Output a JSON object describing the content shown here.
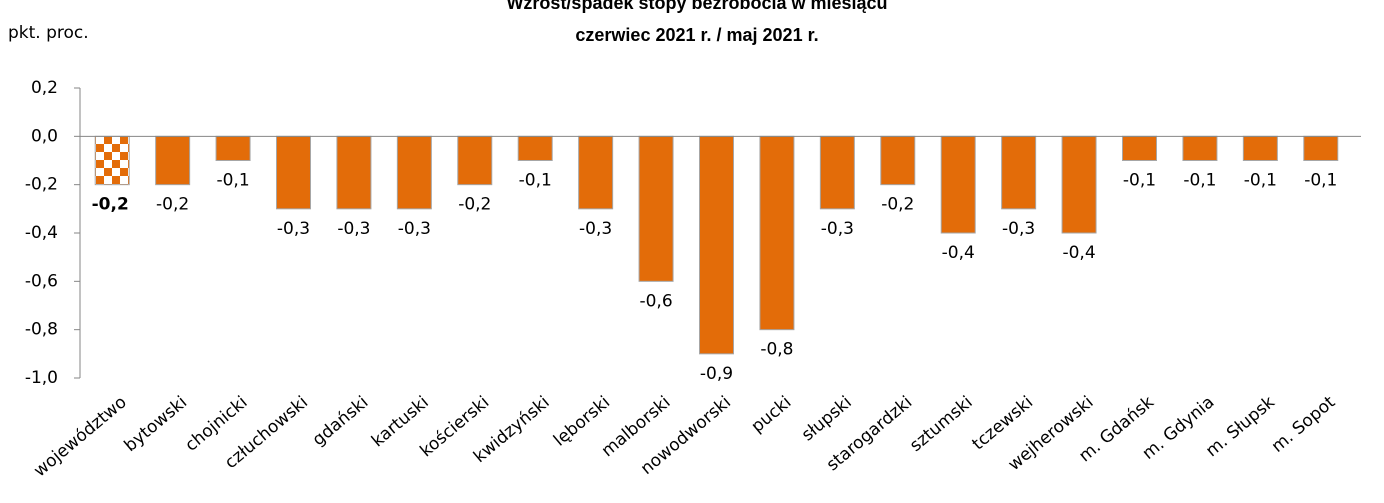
{
  "chart_data": {
    "type": "bar",
    "title": "Wzrost/spadek stopy bezrobocia w miesiącu",
    "subtitle": "czerwiec 2021 r. / maj 2021 r.",
    "y_label": "pkt. proc.",
    "categories": [
      "województwo",
      "bytowski",
      "chojnicki",
      "człuchowski",
      "gdański",
      "kartuski",
      "kościerski",
      "kwidzyński",
      "lęborski",
      "malborski",
      "nowodworski",
      "pucki",
      "słupski",
      "starogardzki",
      "sztumski",
      "tczewski",
      "wejherowski",
      "m. Gdańsk",
      "m. Gdynia",
      "m. Słupsk",
      "m. Sopot"
    ],
    "values": [
      -0.2,
      -0.2,
      -0.1,
      -0.3,
      -0.3,
      -0.3,
      -0.2,
      -0.1,
      -0.3,
      -0.6,
      -0.9,
      -0.8,
      -0.3,
      -0.2,
      -0.4,
      -0.3,
      -0.4,
      -0.1,
      -0.1,
      -0.1,
      -0.1
    ],
    "value_labels": [
      "-0,2",
      "-0,2",
      "-0,1",
      "-0,3",
      "-0,3",
      "-0,3",
      "-0,2",
      "-0,1",
      "-0,3",
      "-0,6",
      "-0,9",
      "-0,8",
      "-0,3",
      "-0,2",
      "-0,4",
      "-0,3",
      "-0,4",
      "-0,1",
      "-0,1",
      "-0,1",
      "-0,1"
    ],
    "color": "#e36c09",
    "highlight": 0,
    "ylim": [
      -1.0,
      0.2
    ],
    "yticks": [
      {
        "value": -1.0,
        "label": "-1,0"
      },
      {
        "value": -0.8,
        "label": "-0,8"
      },
      {
        "value": -0.6,
        "label": "-0,6"
      },
      {
        "value": -0.4,
        "label": "-0,4"
      },
      {
        "value": -0.2,
        "label": "-0,2"
      },
      {
        "value": 0.0,
        "label": "0,0"
      },
      {
        "value": 0.2,
        "label": "0,2"
      }
    ]
  }
}
